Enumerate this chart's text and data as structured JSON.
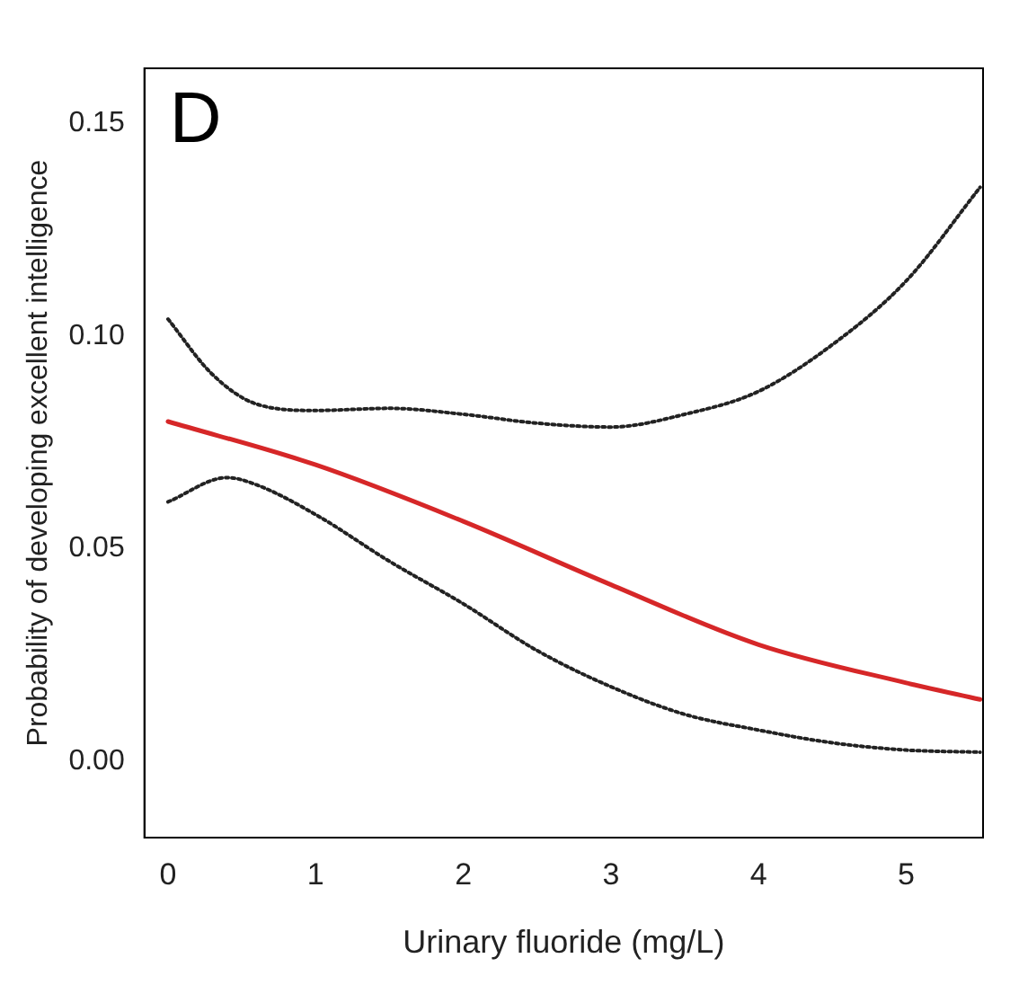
{
  "chart_data": {
    "type": "line",
    "xlabel": "Urinary fluoride (mg/L)",
    "ylabel": "Probability of developing excellent intelligence",
    "annotations": [
      "D"
    ],
    "xlim": [
      -0.16,
      5.52
    ],
    "xticks": [
      0,
      1,
      2,
      3,
      4,
      5
    ],
    "ylim": [
      -0.018,
      0.163
    ],
    "yticks": [
      {
        "value": 0,
        "label": "0.00"
      },
      {
        "value": 0.05,
        "label": "0.05"
      },
      {
        "value": 0.1,
        "label": "0.10"
      },
      {
        "value": 0.15,
        "label": "0.15"
      }
    ],
    "grid": false,
    "legend": false,
    "marker": "none",
    "series": [
      {
        "color": "#d62728",
        "line_style": "solid",
        "x": [
          0,
          1,
          2,
          3,
          4,
          5,
          5.5
        ],
        "values": [
          0.0799,
          0.0697,
          0.0564,
          0.0415,
          0.0274,
          0.0184,
          0.0145
        ]
      },
      {
        "color": "#222222",
        "line_style": "dotted",
        "x": [
          0,
          0.3,
          0.6,
          1,
          1.5,
          2,
          2.5,
          3,
          3.5,
          4,
          4.5,
          5,
          5.5
        ],
        "values": [
          0.104,
          0.091,
          0.084,
          0.0825,
          0.083,
          0.0816,
          0.0795,
          0.0786,
          0.0816,
          0.087,
          0.098,
          0.113,
          0.135
        ]
      },
      {
        "color": "#222222",
        "line_style": "dotted",
        "x": [
          0,
          0.4,
          0.6,
          1,
          1.5,
          2,
          2.5,
          3,
          3.5,
          4,
          4.5,
          5,
          5.5
        ],
        "values": [
          0.061,
          0.0667,
          0.065,
          0.058,
          0.047,
          0.037,
          0.026,
          0.0175,
          0.011,
          0.0073,
          0.0043,
          0.0026,
          0.0021
        ]
      }
    ]
  }
}
